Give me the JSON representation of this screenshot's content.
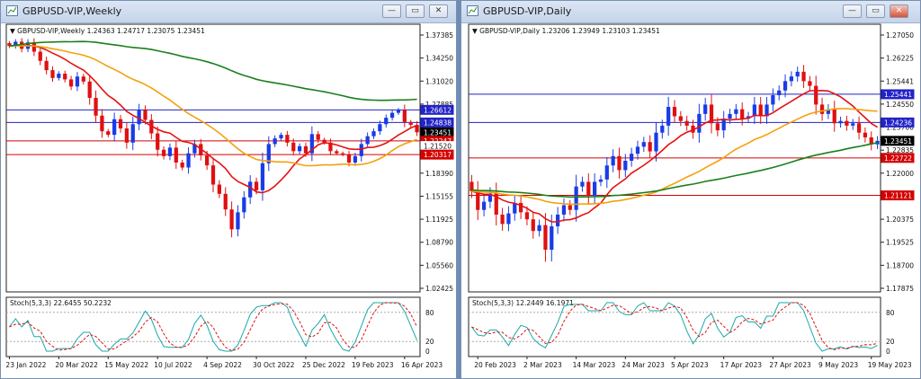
{
  "windows": [
    {
      "title": "GBPUSD-VIP,Weekly",
      "chart_data": {
        "type": "candlestick",
        "header": "GBPUSD-VIP,Weekly  1.24363 1.24717 1.23075 1.23451",
        "ylim": [
          1.01,
          1.379
        ],
        "y_ticks": [
          "1.37385",
          "1.34250",
          "1.31020",
          "1.27885",
          "1.24755",
          "1.21520",
          "1.18390",
          "1.15155",
          "1.11925",
          "1.08790",
          "1.05560",
          "1.02425"
        ],
        "x_labels": [
          "23 Jan 2022",
          "20 Mar 2022",
          "15 May 2022",
          "10 Jul 2022",
          "4 Sep 2022",
          "30 Oct 2022",
          "25 Dec 2022",
          "19 Feb 2023",
          "16 Apr 2023"
        ],
        "x_label_index": [
          0,
          8,
          16,
          24,
          32,
          40,
          48,
          56,
          64
        ],
        "hlines": [
          {
            "value": 1.26612,
            "color": "#2323c8"
          },
          {
            "value": 1.24838,
            "color": "#2323c8"
          },
          {
            "value": 1.22247,
            "color": "#d40000"
          },
          {
            "value": 1.20317,
            "color": "#d40000"
          }
        ],
        "price_labels": [
          {
            "text": "1.26612",
            "value": 1.26612,
            "bg": "#2323c8"
          },
          {
            "text": "1.24838",
            "value": 1.24838,
            "bg": "#2323c8"
          },
          {
            "text": "1.23451",
            "value": 1.23451,
            "bg": "#000000"
          },
          {
            "text": "1.22247",
            "value": 1.22247,
            "bg": "#d40000"
          },
          {
            "text": "1.21520",
            "value": 1.2152,
            "bg": "#ffffff"
          },
          {
            "text": "1.20317",
            "value": 1.20317,
            "bg": "#d40000"
          }
        ],
        "closes": [
          1.356,
          1.362,
          1.352,
          1.361,
          1.348,
          1.335,
          1.322,
          1.311,
          1.317,
          1.309,
          1.299,
          1.313,
          1.306,
          1.283,
          1.258,
          1.236,
          1.231,
          1.253,
          1.24,
          1.22,
          1.246,
          1.266,
          1.252,
          1.233,
          1.21,
          1.201,
          1.213,
          1.192,
          1.185,
          1.205,
          1.218,
          1.202,
          1.188,
          1.161,
          1.148,
          1.126,
          1.098,
          1.122,
          1.143,
          1.165,
          1.153,
          1.191,
          1.218,
          1.226,
          1.231,
          1.22,
          1.208,
          1.215,
          1.205,
          1.232,
          1.224,
          1.22,
          1.208,
          1.205,
          1.203,
          1.192,
          1.201,
          1.218,
          1.229,
          1.236,
          1.246,
          1.255,
          1.262,
          1.266,
          1.249,
          1.245,
          1.23451
        ],
        "ma": [
          {
            "period": 10,
            "color": "#e81010"
          },
          {
            "period": 26,
            "color": "#f5a00a"
          },
          {
            "period": 52,
            "color": "#1a7f1a",
            "after": 1.281
          }
        ],
        "stoch": {
          "label": "Stoch(5,3,3) 22.6455 50.2232",
          "levels": [
            "80",
            "20",
            "0"
          ],
          "k": [
            22.6455
          ],
          "d": [
            50.2232
          ]
        }
      }
    },
    {
      "title": "GBPUSD-VIP,Daily",
      "chart_data": {
        "type": "candlestick",
        "header": "GBPUSD-VIP,Daily  1.23206 1.23949 1.23103 1.23451",
        "ylim": [
          1.17,
          1.282
        ],
        "y_ticks": [
          "1.27050",
          "1.26225",
          "1.25441",
          "1.24550",
          "1.23700",
          "1.22835",
          "1.22000",
          "1.21121",
          "1.20375",
          "1.19525",
          "1.18700",
          "1.17875"
        ],
        "x_labels": [
          "20 Feb 2023",
          "2 Mar 2023",
          "14 Mar 2023",
          "24 Mar 2023",
          "5 Apr 2023",
          "17 Apr 2023",
          "27 Apr 2023",
          "9 May 2023",
          "19 May 2023"
        ],
        "x_label_index": [
          1,
          9,
          17,
          25,
          33,
          41,
          49,
          57,
          65
        ],
        "hlines": [
          {
            "value": 1.25441,
            "color": "#2323c8"
          },
          {
            "value": 1.24236,
            "color": "#2323c8"
          },
          {
            "value": 1.22722,
            "color": "#d40000"
          },
          {
            "value": 1.21121,
            "color": "#d40000"
          }
        ],
        "price_labels": [
          {
            "text": "1.25441",
            "value": 1.25441,
            "bg": "#2323c8"
          },
          {
            "text": "1.24236",
            "value": 1.24236,
            "bg": "#2323c8"
          },
          {
            "text": "1.23451",
            "value": 1.23451,
            "bg": "#000000"
          },
          {
            "text": "1.22722",
            "value": 1.22722,
            "bg": "#d40000"
          },
          {
            "text": "1.21121",
            "value": 1.21121,
            "bg": "#d40000"
          }
        ],
        "closes": [
          1.213,
          1.205,
          1.2085,
          1.212,
          1.203,
          1.199,
          1.2035,
          1.208,
          1.204,
          1.201,
          1.196,
          1.1985,
          1.188,
          1.198,
          1.203,
          1.207,
          1.205,
          1.215,
          1.217,
          1.211,
          1.217,
          1.218,
          1.224,
          1.228,
          1.222,
          1.226,
          1.229,
          1.232,
          1.234,
          1.23,
          1.238,
          1.241,
          1.249,
          1.245,
          1.243,
          1.241,
          1.238,
          1.246,
          1.25,
          1.242,
          1.239,
          1.244,
          1.246,
          1.248,
          1.244,
          1.245,
          1.25,
          1.245,
          1.25,
          1.254,
          1.256,
          1.26,
          1.262,
          1.264,
          1.26,
          1.258,
          1.25,
          1.246,
          1.248,
          1.242,
          1.243,
          1.241,
          1.242,
          1.238,
          1.236,
          1.233,
          1.23451
        ],
        "ma": [
          {
            "period": 10,
            "color": "#e81010"
          },
          {
            "period": 30,
            "color": "#f5a00a"
          },
          {
            "period": 60,
            "color": "#1a7f1a",
            "before": 1.2135
          }
        ],
        "stoch": {
          "label": "Stoch(5,3,3) 12.2449 16.1971",
          "levels": [
            "80",
            "20",
            "0"
          ],
          "k": [
            12.2449
          ],
          "d": [
            16.1971
          ]
        }
      }
    }
  ]
}
